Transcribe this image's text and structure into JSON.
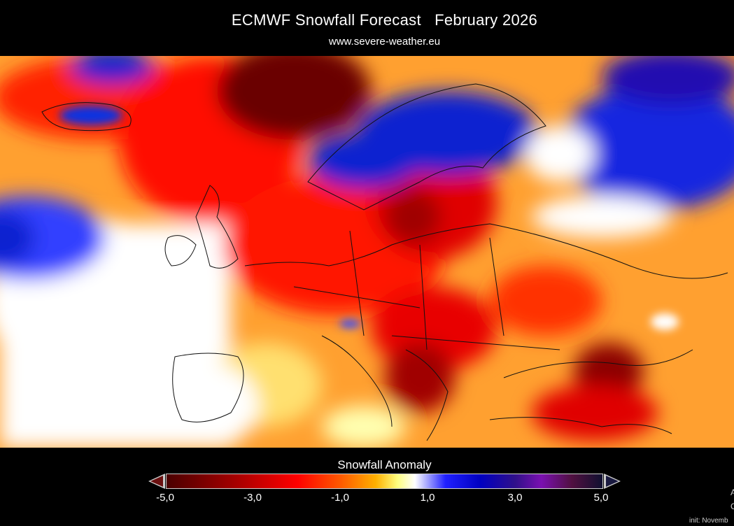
{
  "header": {
    "title": "ECMWF Snowfall Forecast   February 2026",
    "subtitle": "www.severe-weather.eu"
  },
  "legend": {
    "title": "Snowfall Anomaly",
    "ticks": [
      "-5,0",
      "-3,0",
      "-1,0",
      "1,0",
      "3,0",
      "5,0"
    ],
    "range": [
      -5,
      5
    ],
    "colors": {
      "min": "#4a0000",
      "neg": "#ff0000",
      "neutral": "#ffffff",
      "pos": "#0000c0",
      "max": "#101030"
    }
  },
  "footer": {
    "edge_a": "A",
    "edge_c": "C",
    "init": "init: Novemb"
  },
  "map": {
    "low_anomaly_color": "#ff2000",
    "high_anomaly_color": "#1010d0"
  }
}
